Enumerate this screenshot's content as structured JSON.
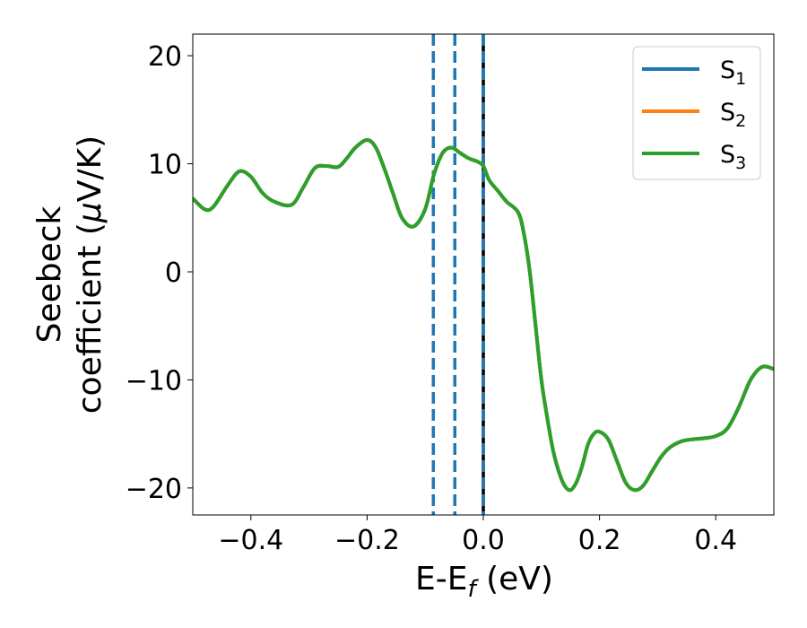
{
  "chart_data": {
    "type": "line",
    "xlabel": {
      "base": "E-E",
      "sub": "f",
      "suffix": " (eV)"
    },
    "ylabel": {
      "line1": "Seebeck",
      "line2_pre": "coefficient  (",
      "mu": "μ",
      "line2_post": "V/K)"
    },
    "xlim": [
      -0.5,
      0.5
    ],
    "ylim": [
      -22.5,
      22
    ],
    "grid": false,
    "legend_position": "top-right",
    "x_ticks": [
      -0.4,
      -0.2,
      0.0,
      0.2,
      0.4
    ],
    "x_tick_labels": [
      "−0.4",
      "−0.2",
      "0.0",
      "0.2",
      "0.4"
    ],
    "y_ticks": [
      20,
      10,
      0,
      -10,
      -20
    ],
    "y_tick_labels": [
      "20",
      "10",
      "0",
      "−10",
      "−20"
    ],
    "vertical_lines": [
      {
        "x": -0.086,
        "style": "dashed",
        "color": "#1f77b4"
      },
      {
        "x": -0.049,
        "style": "dashed",
        "color": "#1f77b4"
      },
      {
        "x": 0.0,
        "style": "solid",
        "color": "#000000"
      },
      {
        "x": 0.0,
        "style": "dashed",
        "color": "#1f77b4"
      }
    ],
    "series": [
      {
        "name": {
          "base": "S",
          "sub": "1"
        },
        "color": "#1f77b4"
      },
      {
        "name": {
          "base": "S",
          "sub": "2"
        },
        "color": "#ff7f0e"
      },
      {
        "name": {
          "base": "S",
          "sub": "3"
        },
        "color": "#2ca02c"
      }
    ],
    "curve": {
      "x": [
        -0.5,
        -0.48,
        -0.465,
        -0.44,
        -0.42,
        -0.4,
        -0.38,
        -0.36,
        -0.33,
        -0.31,
        -0.29,
        -0.27,
        -0.25,
        -0.235,
        -0.22,
        -0.2,
        -0.185,
        -0.17,
        -0.155,
        -0.14,
        -0.12,
        -0.1,
        -0.085,
        -0.07,
        -0.055,
        -0.04,
        -0.025,
        -0.01,
        0.0,
        0.01,
        0.025,
        0.04,
        0.06,
        0.07,
        0.08,
        0.09,
        0.1,
        0.11,
        0.12,
        0.13,
        0.14,
        0.15,
        0.16,
        0.17,
        0.18,
        0.19,
        0.2,
        0.215,
        0.23,
        0.245,
        0.26,
        0.275,
        0.29,
        0.305,
        0.32,
        0.34,
        0.36,
        0.38,
        0.4,
        0.42,
        0.44,
        0.46,
        0.48,
        0.5
      ],
      "y": [
        6.8,
        5.8,
        6.0,
        8.0,
        9.3,
        8.8,
        7.3,
        6.5,
        6.2,
        7.8,
        9.6,
        9.8,
        9.7,
        10.5,
        11.5,
        12.2,
        11.5,
        9.5,
        7.2,
        5.0,
        4.2,
        5.8,
        9.0,
        11.0,
        11.5,
        11.0,
        10.5,
        10.2,
        9.8,
        8.5,
        7.5,
        6.5,
        5.5,
        3.5,
        0.0,
        -5.0,
        -10.0,
        -13.5,
        -16.5,
        -18.5,
        -19.8,
        -20.2,
        -19.5,
        -18.0,
        -16.0,
        -15.0,
        -14.8,
        -15.5,
        -17.5,
        -19.5,
        -20.2,
        -19.8,
        -18.5,
        -17.2,
        -16.3,
        -15.7,
        -15.5,
        -15.4,
        -15.2,
        -14.5,
        -12.5,
        -10.0,
        -8.8,
        -9.0
      ]
    }
  }
}
